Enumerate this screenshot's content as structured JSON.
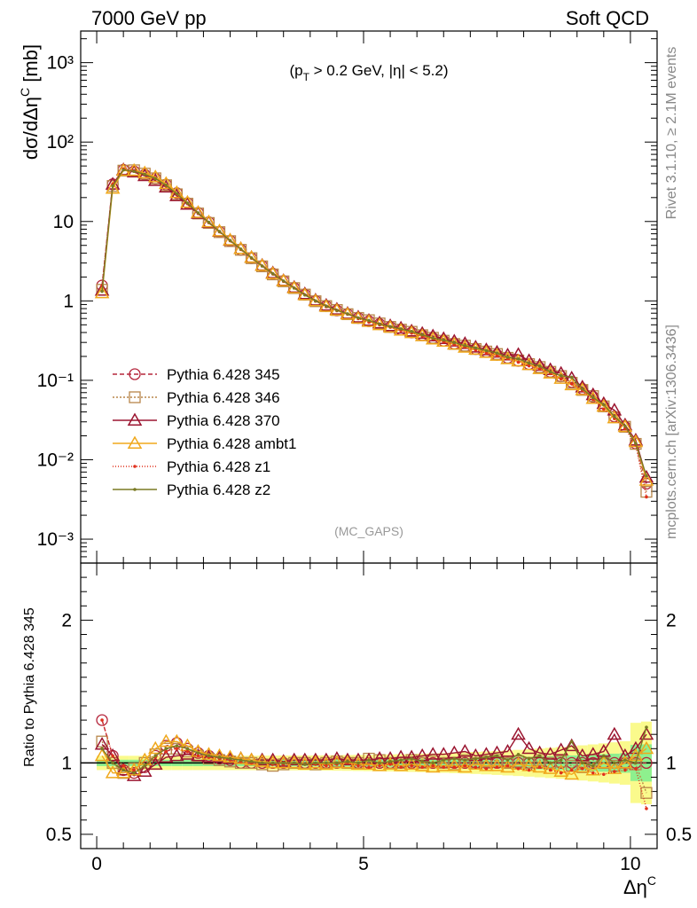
{
  "header": {
    "left": "7000 GeV pp",
    "right": "Soft QCD"
  },
  "side_labels": {
    "rivet": "Rivet 3.1.10, ≥ 2.1M events",
    "mcplots": "mcplots.cern.ch [arXiv:1306.3436]"
  },
  "annotation": {
    "cut_prefix": "(p",
    "cut_sub": "T",
    "cut_suffix": " > 0.2 GeV, |η| < 5.2)",
    "analysis": "(MC_GAPS)"
  },
  "colors": {
    "s345": "#b5263c",
    "s346": "#b8864a",
    "s370": "#9b1530",
    "ambt1": "#f0a81c",
    "z1": "#e0301c",
    "z2": "#7a7a24",
    "band_green": "#8ef08e",
    "band_yellow": "#fafa8c"
  },
  "chart_data": {
    "type": "line",
    "main": {
      "ylabel": "dσ/dΔη",
      "ylabel_sup": "C",
      "ylabel_unit": " [mb]",
      "yscale": "log",
      "ylim": [
        0.0005,
        2500
      ],
      "xlim": [
        -0.3,
        10.5
      ],
      "ytick_labels": [
        "10⁻³",
        "10⁻²",
        "10⁻¹",
        "1",
        "10",
        "10²",
        "10³"
      ],
      "ytick_values": [
        0.001,
        0.01,
        0.1,
        1,
        10,
        100,
        1000
      ]
    },
    "ratio": {
      "ylabel": "Ratio to Pythia 6.428 345",
      "ylim": [
        0.4,
        2.4
      ],
      "ytick_labels": [
        "0.5",
        "1",
        "2"
      ],
      "ytick_values": [
        0.5,
        1,
        2
      ]
    },
    "xlabel": "Δη",
    "xlabel_sup": "C",
    "xtick_labels": [
      "0",
      "5",
      "10"
    ],
    "xtick_values": [
      0,
      5,
      10
    ],
    "x": [
      0.1,
      0.3,
      0.5,
      0.7,
      0.9,
      1.1,
      1.3,
      1.5,
      1.7,
      1.9,
      2.1,
      2.3,
      2.5,
      2.7,
      2.9,
      3.1,
      3.3,
      3.5,
      3.7,
      3.9,
      4.1,
      4.3,
      4.5,
      4.7,
      4.9,
      5.1,
      5.3,
      5.5,
      5.7,
      5.9,
      6.1,
      6.3,
      6.5,
      6.7,
      6.9,
      7.1,
      7.3,
      7.5,
      7.7,
      7.9,
      8.1,
      8.3,
      8.5,
      8.7,
      8.9,
      9.1,
      9.3,
      9.5,
      9.7,
      9.9,
      10.1,
      10.3
    ],
    "reference": [
      1.2,
      28,
      47,
      46,
      40,
      33,
      26,
      20,
      15.5,
      12,
      9.3,
      7.2,
      5.6,
      4.4,
      3.45,
      2.75,
      2.2,
      1.78,
      1.45,
      1.2,
      1.0,
      0.86,
      0.76,
      0.68,
      0.61,
      0.555,
      0.51,
      0.47,
      0.435,
      0.4,
      0.37,
      0.34,
      0.315,
      0.29,
      0.268,
      0.248,
      0.228,
      0.21,
      0.192,
      0.176,
      0.16,
      0.144,
      0.128,
      0.112,
      0.095,
      0.078,
      0.062,
      0.047,
      0.035,
      0.026,
      0.016,
      0.005
    ],
    "series": [
      {
        "name": "Pythia 6.428 345",
        "key": "s345",
        "marker": "circle",
        "dash": "5,3",
        "ratio": [
          1.3,
          1.05,
          0.95,
          0.93,
          0.97,
          1.05,
          1.12,
          1.14,
          1.1,
          1.07,
          1.05,
          1.03,
          1.02,
          1.0,
          1.0,
          1.0,
          1.0,
          1.0,
          1.0,
          1.0,
          1.0,
          1.0,
          1.0,
          1.0,
          1.0,
          1.0,
          1.0,
          1.0,
          1.0,
          1.0,
          1.0,
          1.0,
          1.0,
          1.0,
          1.0,
          1.0,
          1.0,
          1.0,
          1.0,
          1.0,
          1.0,
          1.0,
          1.0,
          1.0,
          1.0,
          1.0,
          1.0,
          1.0,
          1.0,
          1.0,
          1.0,
          1.0
        ]
      },
      {
        "name": "Pythia 6.428 346",
        "key": "s346",
        "marker": "square",
        "dash": "2,2",
        "ratio": [
          1.15,
          1.0,
          0.93,
          0.96,
          1.0,
          1.06,
          1.1,
          1.1,
          1.08,
          1.05,
          1.03,
          1.02,
          1.01,
          1.0,
          1.0,
          0.99,
          0.98,
          0.99,
          1.0,
          1.0,
          0.99,
          1.0,
          1.01,
          1.0,
          1.0,
          1.03,
          1.02,
          1.0,
          1.0,
          1.02,
          1.0,
          1.01,
          1.0,
          0.99,
          1.02,
          1.0,
          1.01,
          1.02,
          1.0,
          1.01,
          1.0,
          1.02,
          1.0,
          1.01,
          0.98,
          0.97,
          1.02,
          1.0,
          0.98,
          1.0,
          0.99,
          0.79
        ]
      },
      {
        "name": "Pythia 6.428 370",
        "key": "s370",
        "marker": "triangle",
        "dash": "",
        "ratio": [
          1.13,
          1.05,
          0.95,
          0.91,
          0.94,
          0.99,
          1.04,
          1.05,
          1.06,
          1.05,
          1.04,
          1.04,
          1.03,
          1.03,
          1.02,
          1.02,
          1.02,
          1.01,
          1.02,
          1.02,
          1.02,
          1.02,
          1.03,
          1.02,
          1.02,
          1.02,
          1.03,
          1.03,
          1.04,
          1.04,
          1.05,
          1.06,
          1.06,
          1.07,
          1.08,
          1.05,
          1.06,
          1.07,
          1.08,
          1.2,
          1.1,
          1.07,
          1.06,
          1.09,
          1.12,
          1.05,
          1.06,
          1.08,
          1.2,
          1.05,
          1.1,
          1.2
        ]
      },
      {
        "name": "Pythia 6.428 ambt1",
        "key": "ambt1",
        "marker": "triangle",
        "dash": "",
        "ratio": [
          1.05,
          0.93,
          0.93,
          0.95,
          1.02,
          1.1,
          1.15,
          1.15,
          1.12,
          1.08,
          1.06,
          1.05,
          1.04,
          1.03,
          1.02,
          1.01,
          1.0,
          1.0,
          1.0,
          0.99,
          1.0,
          0.99,
          1.0,
          1.0,
          0.99,
          0.99,
          0.98,
          0.99,
          0.98,
          0.99,
          0.98,
          0.97,
          0.98,
          0.98,
          0.97,
          0.99,
          0.98,
          0.98,
          0.97,
          0.99,
          0.98,
          0.97,
          0.96,
          0.94,
          0.92,
          0.97,
          0.95,
          1.0,
          0.96,
          1.0,
          1.05,
          1.1
        ]
      },
      {
        "name": "Pythia 6.428 z1",
        "key": "z1",
        "marker": "dot",
        "dash": "1,2",
        "ratio": [
          1.3,
          1.05,
          0.98,
          0.95,
          0.98,
          1.04,
          1.08,
          1.1,
          1.08,
          1.05,
          1.04,
          1.03,
          1.02,
          1.01,
          1.0,
          1.0,
          0.99,
          0.99,
          1.0,
          0.99,
          0.99,
          0.98,
          0.99,
          1.0,
          0.98,
          0.97,
          0.98,
          0.99,
          0.97,
          0.98,
          0.97,
          0.98,
          0.97,
          0.97,
          0.98,
          0.97,
          0.96,
          0.97,
          0.98,
          0.96,
          0.95,
          0.97,
          0.95,
          0.93,
          0.95,
          0.96,
          0.93,
          0.92,
          0.94,
          0.95,
          0.96,
          0.68
        ]
      },
      {
        "name": "Pythia 6.428 z2",
        "key": "z2",
        "marker": "dot",
        "dash": "",
        "ratio": [
          1.1,
          1.0,
          0.95,
          0.93,
          0.98,
          1.05,
          1.1,
          1.12,
          1.1,
          1.07,
          1.05,
          1.04,
          1.03,
          1.02,
          1.01,
          1.0,
          1.0,
          1.0,
          1.0,
          0.99,
          1.0,
          1.0,
          1.0,
          1.01,
          1.0,
          1.02,
          1.0,
          1.01,
          1.02,
          1.03,
          1.01,
          1.0,
          1.02,
          1.03,
          1.02,
          1.03,
          1.04,
          1.05,
          1.02,
          1.06,
          1.03,
          1.05,
          1.0,
          1.02,
          1.15,
          1.0,
          0.98,
          1.05,
          1.0,
          1.02,
          1.0,
          1.25
        ]
      }
    ]
  }
}
